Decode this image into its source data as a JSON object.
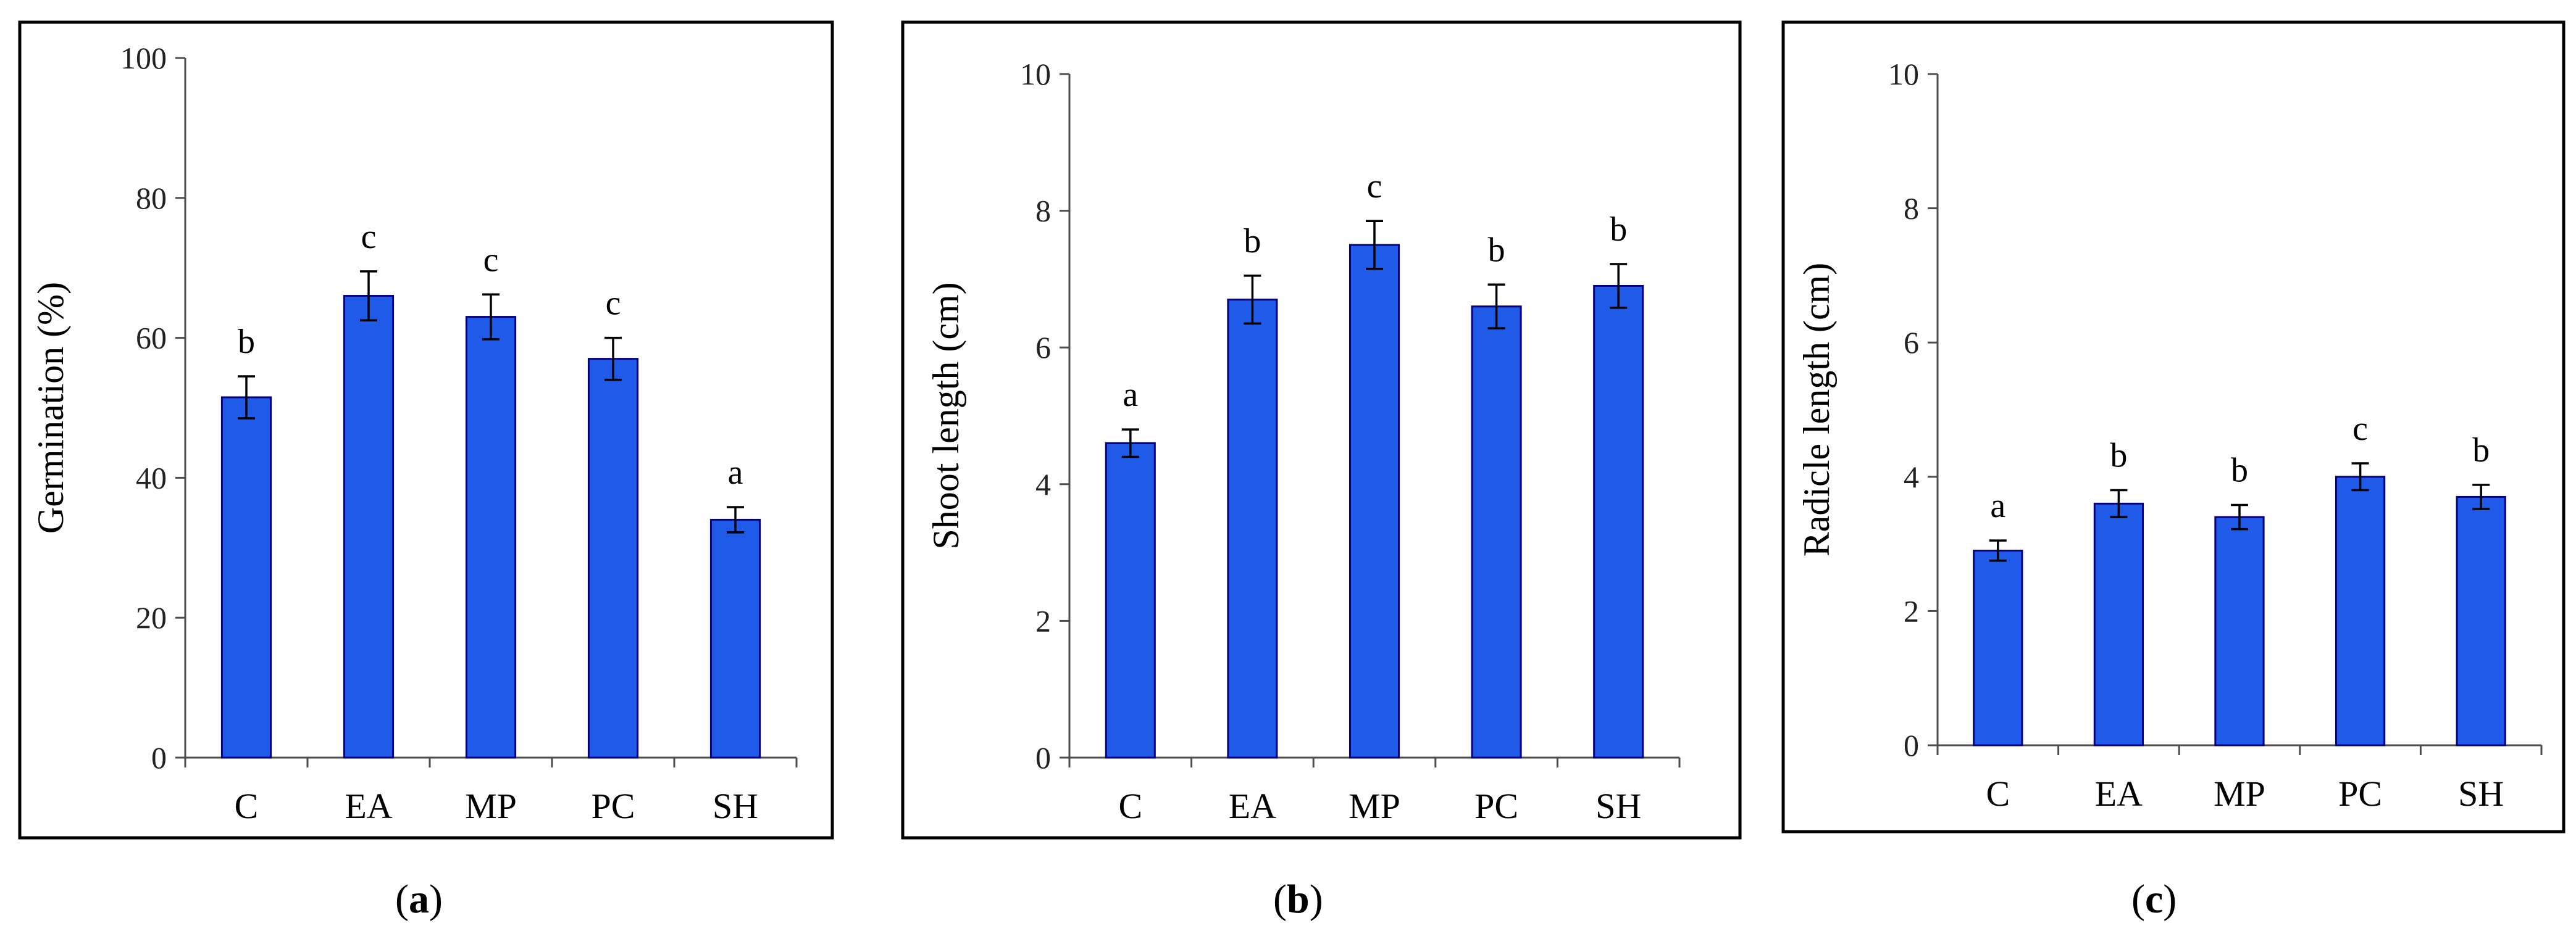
{
  "bar_color": "#1f5ae8",
  "bar_edge_color": "#000080",
  "chart_data": [
    {
      "type": "bar",
      "panel_label": "a",
      "ylabel": "Germination (%)",
      "xlabel": "",
      "ylim": [
        0,
        100
      ],
      "yticks": [
        0,
        20,
        40,
        60,
        80,
        100
      ],
      "categories": [
        "C",
        "EA",
        "MP",
        "PC",
        "SH"
      ],
      "values": [
        51.5,
        66,
        63,
        57,
        34
      ],
      "errors": [
        3,
        3.5,
        3.2,
        3,
        1.8
      ],
      "letters": [
        "b",
        "c",
        "c",
        "c",
        "a"
      ],
      "grid": false
    },
    {
      "type": "bar",
      "panel_label": "b",
      "ylabel": "Shoot length (cm)",
      "xlabel": "",
      "ylim": [
        0,
        10
      ],
      "yticks": [
        0,
        2,
        4,
        6,
        8,
        10
      ],
      "categories": [
        "C",
        "EA",
        "MP",
        "PC",
        "SH"
      ],
      "values": [
        4.6,
        6.7,
        7.5,
        6.6,
        6.9
      ],
      "errors": [
        0.2,
        0.35,
        0.35,
        0.32,
        0.32
      ],
      "letters": [
        "a",
        "b",
        "c",
        "b",
        "b"
      ],
      "grid": false
    },
    {
      "type": "bar",
      "panel_label": "c",
      "ylabel": "Radicle length (cm)",
      "xlabel": "",
      "ylim": [
        0,
        10
      ],
      "yticks": [
        0,
        2,
        4,
        6,
        8,
        10
      ],
      "categories": [
        "C",
        "EA",
        "MP",
        "PC",
        "SH"
      ],
      "values": [
        2.9,
        3.6,
        3.4,
        4.0,
        3.7
      ],
      "errors": [
        0.15,
        0.2,
        0.18,
        0.2,
        0.18
      ],
      "letters": [
        "a",
        "b",
        "b",
        "c",
        "b"
      ],
      "grid": false
    }
  ]
}
